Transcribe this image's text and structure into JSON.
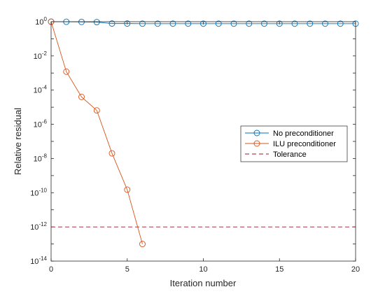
{
  "chart_data": {
    "type": "line",
    "xlabel": "Iteration number",
    "ylabel": "Relative residual",
    "xlim": [
      0,
      20
    ],
    "ylim_exp": [
      -14,
      0
    ],
    "yscale": "log",
    "x_ticks": [
      "0",
      "5",
      "10",
      "15",
      "20"
    ],
    "x_tick_values": [
      0,
      5,
      10,
      15,
      20
    ],
    "y_tick_exponents": [
      "0",
      "-2",
      "-4",
      "-6",
      "-8",
      "-10",
      "-12",
      "-14"
    ],
    "y_tick_base": "10",
    "grid": false,
    "legend_position": "right",
    "series": [
      {
        "name": "No preconditioner",
        "color": "#0072BD",
        "marker": "circle",
        "x": [
          0,
          1,
          2,
          3,
          4,
          5,
          6,
          7,
          8,
          9,
          10,
          11,
          12,
          13,
          14,
          15,
          16,
          17,
          18,
          19,
          20
        ],
        "y": [
          1,
          0.99,
          0.97,
          0.95,
          0.78,
          0.78,
          0.77,
          0.77,
          0.77,
          0.77,
          0.77,
          0.77,
          0.77,
          0.77,
          0.77,
          0.77,
          0.77,
          0.77,
          0.77,
          0.77,
          0.77
        ]
      },
      {
        "name": "ILU preconditioner",
        "color": "#D95319",
        "marker": "circle",
        "x": [
          0,
          1,
          2,
          3,
          4,
          5,
          6
        ],
        "y": [
          1,
          0.0012,
          4e-05,
          6.5e-06,
          2e-08,
          1.5e-10,
          1e-13
        ]
      }
    ],
    "reference_lines": [
      {
        "name": "Tolerance",
        "color": "#A2142F",
        "style": "dashed",
        "y": 1e-12
      }
    ]
  }
}
